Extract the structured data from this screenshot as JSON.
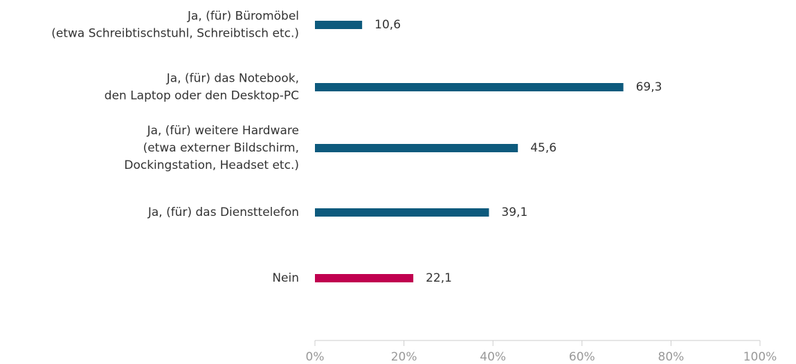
{
  "chart_data": {
    "type": "hbar",
    "categories": [
      [
        "Ja, (für) Büromöbel",
        "(etwa Schreibtischstuhl, Schreibtisch etc.)"
      ],
      [
        "Ja, (für) das Notebook,",
        "den Laptop oder den Desktop-PC"
      ],
      [
        "Ja, (für) weitere Hardware",
        "(etwa externer Bildschirm,",
        "Dockingstation, Headset etc.)"
      ],
      [
        "Ja, (für) das Diensttelefon"
      ],
      [
        "Nein"
      ]
    ],
    "values": [
      10.6,
      69.3,
      45.6,
      39.1,
      22.1
    ],
    "value_labels": [
      "10,6",
      "69,3",
      "45,6",
      "39,1",
      "22,1"
    ],
    "colors": [
      "#0d5a7d",
      "#0d5a7d",
      "#0d5a7d",
      "#0d5a7d",
      "#c0004f"
    ],
    "xlim": [
      0,
      100
    ],
    "xticks": [
      {
        "value": 0,
        "label": "0%"
      },
      {
        "value": 20,
        "label": "20%"
      },
      {
        "value": 40,
        "label": "40%"
      },
      {
        "value": 60,
        "label": "60%"
      },
      {
        "value": 80,
        "label": "80%"
      },
      {
        "value": 100,
        "label": "100%"
      }
    ]
  }
}
